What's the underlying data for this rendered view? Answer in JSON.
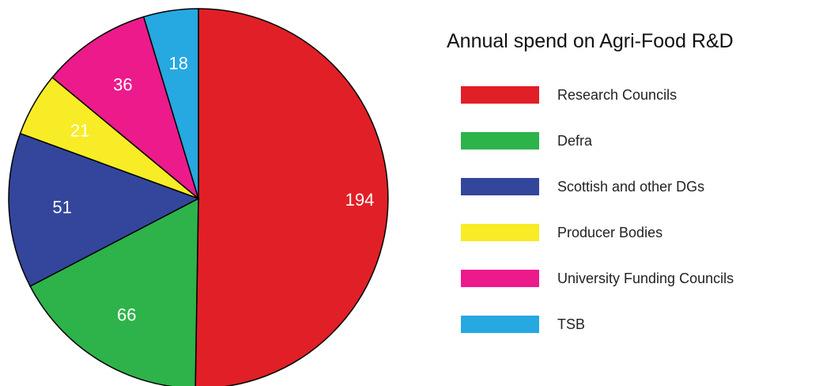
{
  "chart_data": {
    "type": "pie",
    "title": "Annual spend on Agri-Food R&D",
    "slices": [
      {
        "name": "Research Councils",
        "value": 194,
        "color": "#e11f26"
      },
      {
        "name": "Defra",
        "value": 66,
        "color": "#2db34a"
      },
      {
        "name": "Scottish and other DGs",
        "value": 51,
        "color": "#33469b"
      },
      {
        "name": "Producer Bodies",
        "value": 21,
        "color": "#f7ec25"
      },
      {
        "name": "University Funding Councils",
        "value": 36,
        "color": "#ec1a8b"
      },
      {
        "name": "TSB",
        "value": 18,
        "color": "#26a8e0"
      }
    ],
    "legend_position": "right",
    "direction": "clockwise",
    "start": "top"
  }
}
